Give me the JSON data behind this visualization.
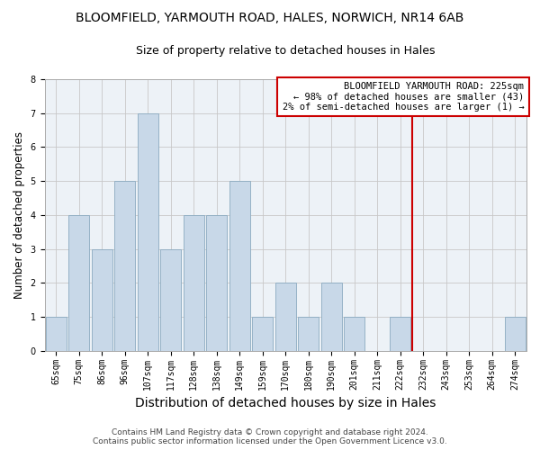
{
  "title": "BLOOMFIELD, YARMOUTH ROAD, HALES, NORWICH, NR14 6AB",
  "subtitle": "Size of property relative to detached houses in Hales",
  "xlabel": "Distribution of detached houses by size in Hales",
  "ylabel": "Number of detached properties",
  "categories": [
    "65sqm",
    "75sqm",
    "86sqm",
    "96sqm",
    "107sqm",
    "117sqm",
    "128sqm",
    "138sqm",
    "149sqm",
    "159sqm",
    "170sqm",
    "180sqm",
    "190sqm",
    "201sqm",
    "211sqm",
    "222sqm",
    "232sqm",
    "243sqm",
    "253sqm",
    "264sqm",
    "274sqm"
  ],
  "values": [
    1,
    4,
    3,
    5,
    7,
    3,
    4,
    4,
    5,
    1,
    2,
    1,
    2,
    1,
    0,
    1,
    0,
    0,
    0,
    0,
    1
  ],
  "bar_color": "#c8d8e8",
  "bar_edge_color": "#8aaac0",
  "grid_color": "#c8c8c8",
  "background_color": "#edf2f7",
  "vline_x": 15.5,
  "vline_color": "#cc0000",
  "annotation_text": "BLOOMFIELD YARMOUTH ROAD: 225sqm\n← 98% of detached houses are smaller (43)\n2% of semi-detached houses are larger (1) →",
  "annotation_box_color": "#ffffff",
  "annotation_box_edge": "#cc0000",
  "footer_line1": "Contains HM Land Registry data © Crown copyright and database right 2024.",
  "footer_line2": "Contains public sector information licensed under the Open Government Licence v3.0.",
  "ylim": [
    0,
    8
  ],
  "title_fontsize": 10,
  "subtitle_fontsize": 9,
  "xlabel_fontsize": 10,
  "ylabel_fontsize": 8.5,
  "tick_fontsize": 7,
  "footer_fontsize": 6.5,
  "ann_fontsize": 7.5
}
